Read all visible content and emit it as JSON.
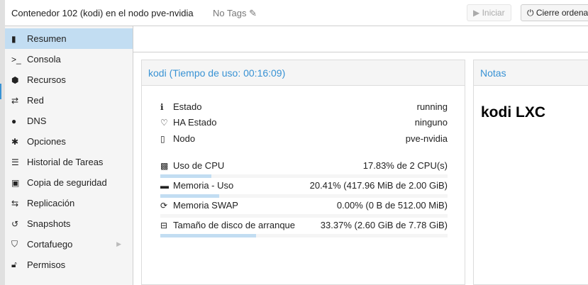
{
  "header": {
    "title": "Contenedor 102 (kodi) en el nodo pve-nvidia",
    "tags": "No Tags",
    "start_label": "Iniciar",
    "shutdown_label": "Cierre ordenado"
  },
  "sidebar": {
    "items": [
      {
        "label": "Resumen",
        "icon": "book-icon",
        "active": true
      },
      {
        "label": "Consola",
        "icon": "terminal-icon"
      },
      {
        "label": "Recursos",
        "icon": "cube-icon"
      },
      {
        "label": "Red",
        "icon": "exchange-icon"
      },
      {
        "label": "DNS",
        "icon": "globe-icon"
      },
      {
        "label": "Opciones",
        "icon": "gear-icon"
      },
      {
        "label": "Historial de Tareas",
        "icon": "list-icon"
      },
      {
        "label": "Copia de seguridad",
        "icon": "floppy-icon"
      },
      {
        "label": "Replicación",
        "icon": "retweet-icon"
      },
      {
        "label": "Snapshots",
        "icon": "history-icon"
      },
      {
        "label": "Cortafuego",
        "icon": "shield-icon",
        "has_submenu": true
      },
      {
        "label": "Permisos",
        "icon": "unlock-icon"
      }
    ]
  },
  "status": {
    "title": "kodi (Tiempo de uso: 00:16:09)",
    "info": [
      {
        "label": "Estado",
        "value": "running",
        "icon": "info-icon"
      },
      {
        "label": "HA Estado",
        "value": "ninguno",
        "icon": "heartbeat-icon"
      },
      {
        "label": "Nodo",
        "value": "pve-nvidia",
        "icon": "building-icon"
      }
    ],
    "usage": [
      {
        "label": "Uso de CPU",
        "value": "17.83% de 2 CPU(s)",
        "percent": 17.83,
        "icon": "cpu-icon"
      },
      {
        "label": "Memoria - Uso",
        "value": "20.41% (417.96 MiB de 2.00 GiB)",
        "percent": 20.41,
        "icon": "memory-icon"
      },
      {
        "label": "Memoria SWAP",
        "value": "0.00% (0 B de 512.00 MiB)",
        "percent": 0,
        "icon": "refresh-icon"
      },
      {
        "label": "Tamaño de disco de arranque",
        "value": "33.37% (2.60 GiB de 7.78 GiB)",
        "percent": 33.37,
        "icon": "hdd-icon"
      }
    ]
  },
  "notes": {
    "title": "Notas",
    "content": "kodi LXC"
  },
  "colors": {
    "accent": "#3892d4",
    "selected": "#c2ddf2"
  }
}
